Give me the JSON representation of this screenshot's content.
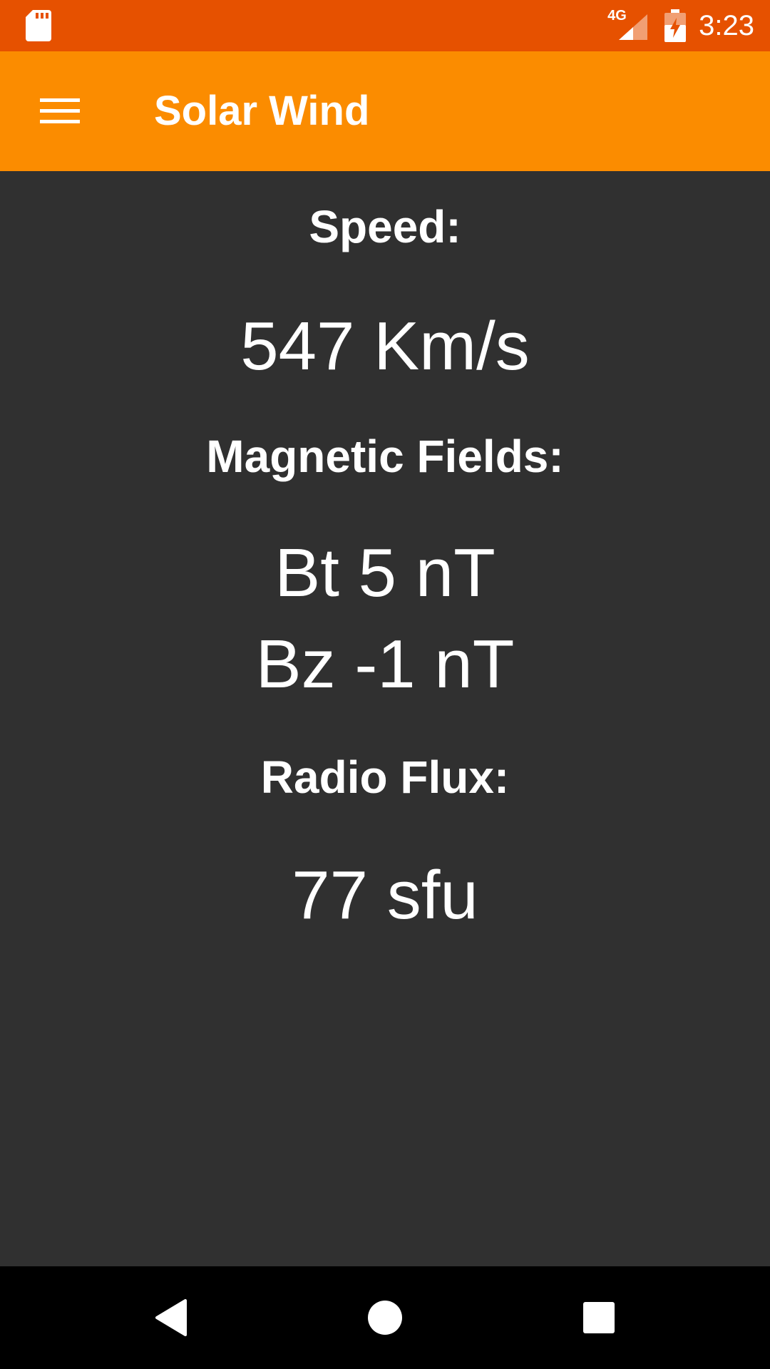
{
  "status_bar": {
    "network_type": "4G",
    "time": "3:23",
    "background_color": "#e65100",
    "icons": [
      "sd-card-icon",
      "cell-signal-icon",
      "battery-charging-icon"
    ]
  },
  "app_bar": {
    "title": "Solar Wind",
    "background_color": "#fb8c00",
    "menu_icon": "hamburger-menu-icon"
  },
  "main": {
    "background_color": "#303030",
    "speed": {
      "label": "Speed:",
      "value": "547 Km/s"
    },
    "magnetic_fields": {
      "label": "Magnetic Fields:",
      "bt": "Bt 5 nT",
      "bz": "Bz -1 nT"
    },
    "radio_flux": {
      "label": "Radio Flux:",
      "value": "77 sfu"
    }
  },
  "nav_bar": {
    "icons": [
      "back-icon",
      "home-icon",
      "recents-icon"
    ]
  }
}
